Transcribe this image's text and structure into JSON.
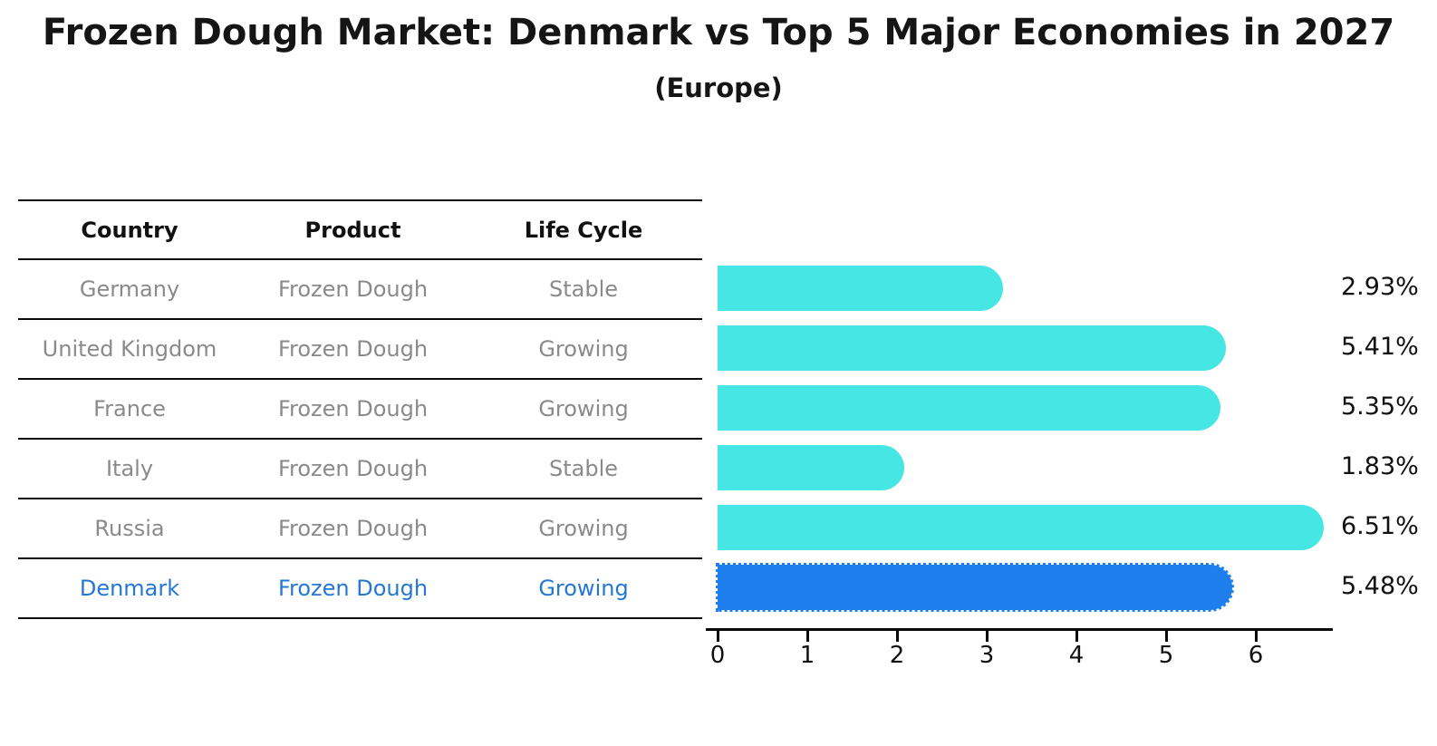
{
  "title": "Frozen Dough Market: Denmark vs Top 5 Major Economies in 2027",
  "subtitle": "(Europe)",
  "table": {
    "headers": [
      "Country",
      "Product",
      "Life Cycle"
    ],
    "rows": [
      {
        "country": "Germany",
        "product": "Frozen Dough",
        "life_cycle": "Stable",
        "highlight": false
      },
      {
        "country": "United Kingdom",
        "product": "Frozen Dough",
        "life_cycle": "Growing",
        "highlight": false
      },
      {
        "country": "France",
        "product": "Frozen Dough",
        "life_cycle": "Growing",
        "highlight": false
      },
      {
        "country": "Italy",
        "product": "Frozen Dough",
        "life_cycle": "Stable",
        "highlight": false
      },
      {
        "country": "Russia",
        "product": "Frozen Dough",
        "life_cycle": "Growing",
        "highlight": false
      },
      {
        "country": "Denmark",
        "product": "Frozen Dough",
        "life_cycle": "Growing",
        "highlight": true
      }
    ]
  },
  "chart_data": {
    "type": "bar",
    "orientation": "horizontal",
    "title": "Frozen Dough Market: Denmark vs Top 5 Major Economies in 2027 (Europe)",
    "categories": [
      "Germany",
      "United Kingdom",
      "France",
      "Italy",
      "Russia",
      "Denmark"
    ],
    "values": [
      2.93,
      5.41,
      5.35,
      1.83,
      6.51,
      5.48
    ],
    "value_labels": [
      "2.93%",
      "5.41%",
      "5.35%",
      "1.83%",
      "6.51%",
      "5.48%"
    ],
    "highlight_index": 5,
    "x_ticks": [
      0,
      1,
      2,
      3,
      4,
      5,
      6
    ],
    "xlim": [
      0,
      6.85
    ],
    "grid": false,
    "legend": "none",
    "bar_color": "#45E6E3",
    "highlight_color": "#1E7FEC"
  },
  "colors": {
    "bar": "#45E6E3",
    "highlight_bar": "#1E7FEC",
    "highlight_text": "#2378D4",
    "row_text": "#8a8a8a",
    "header_text": "#111111"
  }
}
